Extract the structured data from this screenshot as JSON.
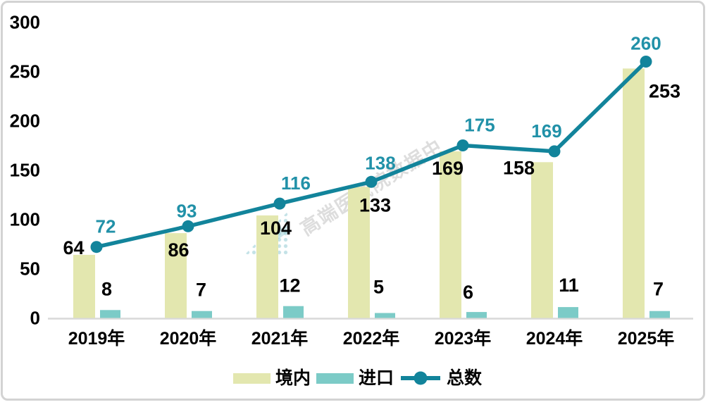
{
  "watermark": {
    "text": "高端医械院数据中"
  },
  "chart_data": {
    "type": "bar",
    "title": "",
    "xlabel": "",
    "ylabel": "",
    "categories": [
      "2019年",
      "2020年",
      "2021年",
      "2022年",
      "2023年",
      "2024年",
      "2025年"
    ],
    "series": [
      {
        "id": "domestic",
        "name": "境内",
        "type": "bar",
        "color": "#E3E7AF",
        "label_color": "#000000",
        "values": [
          64,
          86,
          104,
          133,
          169,
          158,
          253
        ],
        "label_offsets": [
          [
            -15,
            -10
          ],
          [
            4,
            24
          ],
          [
            12,
            18
          ],
          [
            23,
            26
          ],
          [
            -4,
            24
          ],
          [
            -33,
            8
          ],
          [
            44,
            32
          ]
        ]
      },
      {
        "id": "import",
        "name": "进口",
        "type": "bar",
        "color": "#7CCBC7",
        "label_color": "#000000",
        "values": [
          8,
          7,
          12,
          5,
          6,
          11,
          7
        ],
        "label_offsets": [
          [
            -5,
            -30
          ],
          [
            -1,
            -30
          ],
          [
            -5,
            -29
          ],
          [
            -9,
            -37
          ],
          [
            -12,
            -28
          ],
          [
            1,
            -31
          ],
          [
            -2,
            -31
          ]
        ]
      },
      {
        "id": "total",
        "name": "总数",
        "type": "line",
        "color": "#12849B",
        "label_color": "#2191A8",
        "values": [
          72,
          93,
          116,
          138,
          175,
          169,
          260
        ],
        "label_offsets": [
          [
            13,
            -29
          ],
          [
            -2,
            -22
          ],
          [
            23,
            -29
          ],
          [
            13,
            -27
          ],
          [
            24,
            -29
          ],
          [
            -11,
            -29
          ],
          [
            0,
            -26
          ]
        ]
      }
    ],
    "ylim": [
      0,
      300
    ],
    "yticks": [
      0,
      50,
      100,
      150,
      200,
      250,
      300
    ],
    "grid": false,
    "legend_position": "bottom",
    "axis_line_color": "#D9D9D9"
  }
}
